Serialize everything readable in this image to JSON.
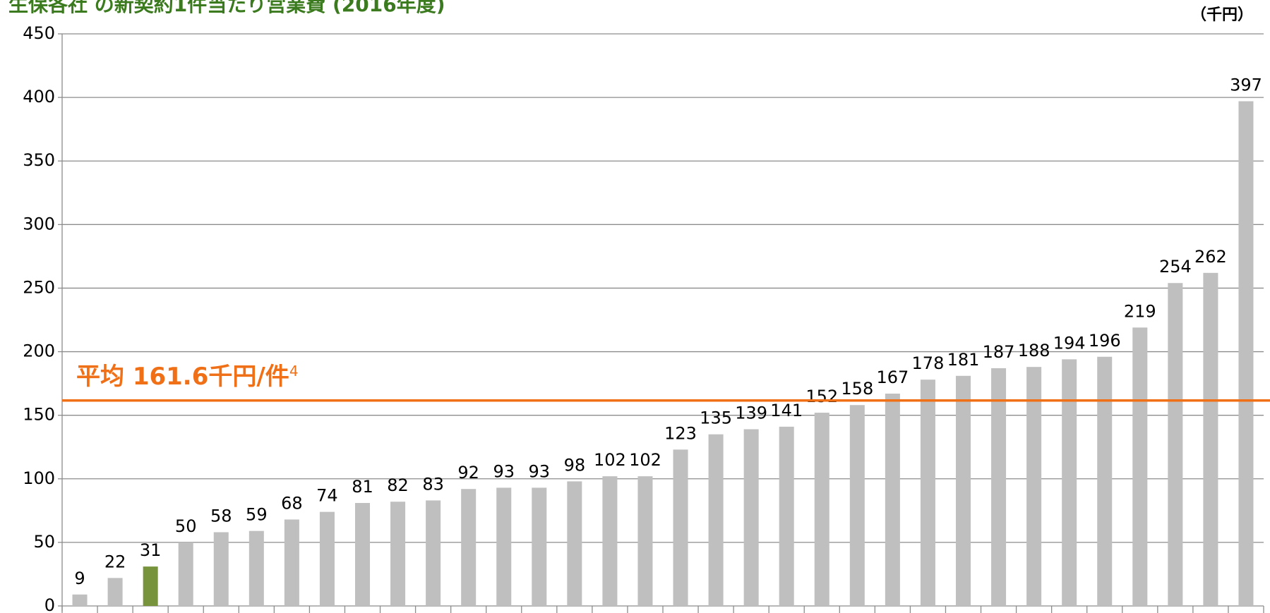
{
  "chart_data": {
    "type": "bar",
    "title": "生保各社 の新契約1件当たり営業費 (2016年度)",
    "unit_label": "（千円）",
    "categories": [
      null,
      null,
      null,
      null,
      null,
      null,
      null,
      null,
      null,
      null,
      null,
      null,
      null,
      null,
      null,
      null,
      null,
      null,
      null,
      null,
      null,
      null,
      null,
      null,
      null,
      null,
      null,
      null,
      null,
      null,
      null,
      null,
      null,
      null
    ],
    "series": [
      {
        "colors": [
          "#bfbfbf",
          "#bfbfbf",
          "#77933c",
          "#bfbfbf",
          "#bfbfbf",
          "#bfbfbf",
          "#bfbfbf",
          "#bfbfbf",
          "#bfbfbf",
          "#bfbfbf",
          "#bfbfbf",
          "#bfbfbf",
          "#bfbfbf",
          "#bfbfbf",
          "#bfbfbf",
          "#bfbfbf",
          "#bfbfbf",
          "#bfbfbf",
          "#bfbfbf",
          "#bfbfbf",
          "#bfbfbf",
          "#bfbfbf",
          "#bfbfbf",
          "#bfbfbf",
          "#bfbfbf",
          "#bfbfbf",
          "#bfbfbf",
          "#bfbfbf",
          "#bfbfbf",
          "#bfbfbf",
          "#bfbfbf",
          "#bfbfbf",
          "#bfbfbf",
          "#bfbfbf"
        ],
        "values": [
          9,
          22,
          31,
          50,
          58,
          59,
          68,
          74,
          81,
          82,
          83,
          92,
          93,
          93,
          98,
          102,
          102,
          123,
          135,
          139,
          141,
          152,
          158,
          167,
          178,
          181,
          187,
          188,
          194,
          196,
          219,
          254,
          262,
          397
        ]
      }
    ],
    "reference_line": {
      "value": 161.6,
      "label": "平均 161.6千円/件",
      "note": "4",
      "color": "#f07018"
    },
    "ylim": [
      0,
      450
    ],
    "yticks": [
      0,
      50,
      100,
      150,
      200,
      250,
      300,
      350,
      400,
      450
    ],
    "grid": true
  }
}
